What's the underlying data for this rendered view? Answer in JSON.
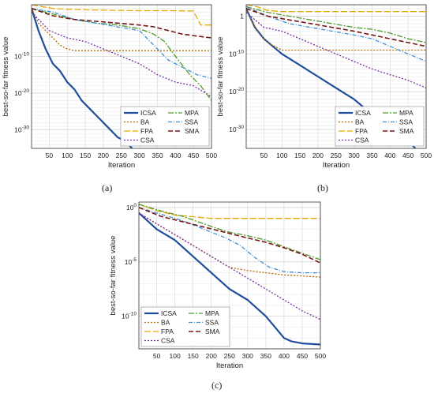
{
  "chart_data": [
    {
      "type": "line",
      "panel_label": "(a)",
      "xlabel": "Iteration",
      "ylabel": "best-so-far fitness value",
      "yscale": "log",
      "grid": true,
      "legend_position": "bottom-right",
      "xlim": [
        1,
        500
      ],
      "ylim_log10": [
        -35,
        4
      ],
      "x_ticks": [
        50,
        100,
        150,
        200,
        250,
        300,
        350,
        400,
        450,
        500
      ],
      "y_ticks": [
        {
          "exp": -30,
          "label": "10-30"
        },
        {
          "exp": -20,
          "label": "10-20"
        },
        {
          "exp": -10,
          "label": "10-10"
        }
      ],
      "legend": [
        "ICSA",
        "BA",
        "FPA",
        "CSA",
        "MPA",
        "SSA",
        "SMA"
      ],
      "series": [
        {
          "name": "ICSA",
          "color": "#1f4e9c",
          "dash": "",
          "width": 2.2,
          "x": [
            1,
            20,
            40,
            60,
            80,
            100,
            120,
            140,
            160,
            180,
            200,
            220,
            240,
            260,
            280
          ],
          "y_log10": [
            3,
            -3,
            -8,
            -12,
            -14,
            -17,
            -19,
            -22,
            -24,
            -26,
            -28,
            -30,
            -32,
            -33,
            -35
          ]
        },
        {
          "name": "BA",
          "color": "#b36a00",
          "dash": "2,2",
          "width": 1.3,
          "x": [
            1,
            20,
            40,
            60,
            80,
            100,
            120,
            500
          ],
          "y_log10": [
            3,
            -1,
            -3,
            -5,
            -7,
            -8,
            -8.5,
            -8.5
          ]
        },
        {
          "name": "FPA",
          "color": "#e6a800",
          "dash": "8,3",
          "width": 1.3,
          "x": [
            1,
            30,
            60,
            100,
            160,
            220,
            300,
            380,
            450,
            470,
            500
          ],
          "y_log10": [
            4,
            3.5,
            3,
            2.8,
            2.6,
            2.5,
            2.4,
            2.4,
            2.3,
            -1.5,
            -1.5
          ]
        },
        {
          "name": "CSA",
          "color": "#7a2ea0",
          "dash": "2,2",
          "width": 1.3,
          "x": [
            1,
            50,
            100,
            150,
            200,
            250,
            300,
            350,
            400,
            450,
            500
          ],
          "y_log10": [
            2,
            -3,
            -5,
            -6,
            -8,
            -10,
            -12,
            -15,
            -17,
            -18,
            -21
          ]
        },
        {
          "name": "MPA",
          "color": "#4f9a2c",
          "dash": "7,2,2,2",
          "width": 1.3,
          "x": [
            1,
            60,
            120,
            180,
            240,
            300,
            340,
            370,
            400,
            440,
            470,
            500
          ],
          "y_log10": [
            3,
            1.5,
            0,
            -1,
            -1.5,
            -2.5,
            -4,
            -6,
            -10,
            -15,
            -18,
            -22
          ]
        },
        {
          "name": "SSA",
          "color": "#3e8fd6",
          "dash": "5,2,1,2",
          "width": 1.3,
          "x": [
            1,
            60,
            120,
            180,
            240,
            300,
            340,
            380,
            420,
            460,
            500
          ],
          "y_log10": [
            3,
            2,
            0,
            -1,
            -2,
            -3,
            -7,
            -11,
            -13,
            -15,
            -16
          ]
        },
        {
          "name": "SMA",
          "color": "#7a1414",
          "dash": "6,3",
          "width": 1.6,
          "x": [
            1,
            60,
            120,
            180,
            240,
            300,
            340,
            380,
            420,
            460,
            500
          ],
          "y_log10": [
            3,
            1,
            0,
            -0.5,
            -1,
            -1.5,
            -2,
            -3,
            -4,
            -4.5,
            -5
          ]
        }
      ]
    },
    {
      "type": "line",
      "panel_label": "(b)",
      "xlabel": "Iteration",
      "ylabel": "best-so-far fitness value",
      "yscale": "log",
      "grid": true,
      "legend_position": "bottom-right",
      "xlim": [
        1,
        500
      ],
      "ylim_log10": [
        -35,
        3
      ],
      "x_ticks": [
        50,
        100,
        150,
        200,
        250,
        300,
        350,
        400,
        450,
        500
      ],
      "y_ticks": [
        {
          "exp": -30,
          "label": "10-30"
        },
        {
          "exp": -20,
          "label": "10-20"
        },
        {
          "exp": -10,
          "label": "10-10"
        },
        {
          "exp": 0,
          "label": "1"
        }
      ],
      "legend": [
        "ICSA",
        "BA",
        "FPA",
        "CSA",
        "MPA",
        "SSA",
        "SMA"
      ],
      "series": [
        {
          "name": "ICSA",
          "color": "#1f4e9c",
          "dash": "",
          "width": 2.2,
          "x": [
            1,
            25,
            50,
            75,
            100,
            150,
            200,
            250,
            300,
            350,
            400,
            450,
            470
          ],
          "y_log10": [
            2,
            -3,
            -6,
            -8,
            -10,
            -13,
            -16,
            -19,
            -22,
            -26,
            -30,
            -33,
            -35
          ]
        },
        {
          "name": "BA",
          "color": "#b36a00",
          "dash": "2,2",
          "width": 1.3,
          "x": [
            1,
            20,
            40,
            60,
            80,
            100,
            500
          ],
          "y_log10": [
            2,
            -2,
            -5,
            -7,
            -8,
            -9,
            -9
          ]
        },
        {
          "name": "FPA",
          "color": "#e6a800",
          "dash": "8,3",
          "width": 1.3,
          "x": [
            1,
            30,
            60,
            100,
            500
          ],
          "y_log10": [
            3,
            2.5,
            1.5,
            1.2,
            1.2
          ]
        },
        {
          "name": "CSA",
          "color": "#7a2ea0",
          "dash": "2,2",
          "width": 1.3,
          "x": [
            1,
            50,
            100,
            150,
            200,
            250,
            300,
            350,
            400,
            450,
            500
          ],
          "y_log10": [
            1,
            -3,
            -4,
            -6,
            -8,
            -10,
            -12,
            -14,
            -15.5,
            -17,
            -19
          ]
        },
        {
          "name": "MPA",
          "color": "#4f9a2c",
          "dash": "7,2,2,2",
          "width": 1.3,
          "x": [
            1,
            60,
            120,
            180,
            240,
            300,
            350,
            400,
            450,
            500
          ],
          "y_log10": [
            2.5,
            1,
            0,
            -1,
            -2,
            -3,
            -3.5,
            -4.5,
            -6,
            -7
          ]
        },
        {
          "name": "SSA",
          "color": "#3e8fd6",
          "dash": "5,2,1,2",
          "width": 1.3,
          "x": [
            1,
            60,
            120,
            180,
            240,
            300,
            350,
            400,
            450,
            500
          ],
          "y_log10": [
            2.5,
            0,
            -2,
            -3,
            -4,
            -5,
            -6,
            -8,
            -10,
            -12
          ]
        },
        {
          "name": "SMA",
          "color": "#7a1414",
          "dash": "6,3",
          "width": 1.6,
          "x": [
            1,
            60,
            120,
            180,
            240,
            300,
            350,
            400,
            450,
            500
          ],
          "y_log10": [
            2,
            0,
            -1,
            -2,
            -3,
            -4,
            -5,
            -6,
            -7,
            -8
          ]
        }
      ]
    },
    {
      "type": "line",
      "panel_label": "(c)",
      "xlabel": "Iteration",
      "ylabel": "best-so-far fitness value",
      "yscale": "log",
      "grid": true,
      "legend_position": "bottom-left",
      "xlim": [
        1,
        500
      ],
      "ylim_log10": [
        -13,
        0.5
      ],
      "x_ticks": [
        50,
        100,
        150,
        200,
        250,
        300,
        350,
        400,
        450,
        500
      ],
      "y_ticks": [
        {
          "exp": -10,
          "label": "10-10"
        },
        {
          "exp": -5,
          "label": "10-5"
        },
        {
          "exp": 0,
          "label": "100"
        }
      ],
      "legend": [
        "ICSA",
        "BA",
        "FPA",
        "CSA",
        "MPA",
        "SSA",
        "SMA"
      ],
      "series": [
        {
          "name": "ICSA",
          "color": "#1f4e9c",
          "dash": "",
          "width": 2.2,
          "x": [
            1,
            50,
            100,
            150,
            200,
            250,
            300,
            350,
            400,
            420,
            450,
            500
          ],
          "y_log10": [
            -0.5,
            -2,
            -3,
            -4.5,
            -6,
            -7.5,
            -8.5,
            -10,
            -12,
            -12.3,
            -12.5,
            -12.6
          ]
        },
        {
          "name": "BA",
          "color": "#b36a00",
          "dash": "2,2",
          "width": 1.3,
          "x": [
            1,
            50,
            100,
            150,
            200,
            250,
            300,
            350,
            400,
            450,
            500
          ],
          "y_log10": [
            -0.5,
            -1.5,
            -2.5,
            -3.5,
            -4.5,
            -5.5,
            -5.8,
            -6,
            -6.2,
            -6.3,
            -6.4
          ]
        },
        {
          "name": "FPA",
          "color": "#e6a800",
          "dash": "8,3",
          "width": 1.3,
          "x": [
            1,
            50,
            100,
            200,
            500
          ],
          "y_log10": [
            0.3,
            -0.3,
            -0.7,
            -1,
            -1
          ]
        },
        {
          "name": "CSA",
          "color": "#7a2ea0",
          "dash": "2,2",
          "width": 1.3,
          "x": [
            1,
            50,
            100,
            150,
            200,
            250,
            300,
            350,
            400,
            450,
            500
          ],
          "y_log10": [
            -0.5,
            -1.5,
            -2.5,
            -3.5,
            -4.5,
            -5.5,
            -6.5,
            -7.5,
            -8.5,
            -9.5,
            -10.3
          ]
        },
        {
          "name": "MPA",
          "color": "#4f9a2c",
          "dash": "7,2,2,2",
          "width": 1.3,
          "x": [
            1,
            60,
            120,
            180,
            240,
            300,
            350,
            400,
            450,
            500
          ],
          "y_log10": [
            0.3,
            -0.3,
            -0.8,
            -1.5,
            -2.2,
            -2.6,
            -3,
            -3.6,
            -4.2,
            -4.8
          ]
        },
        {
          "name": "SSA",
          "color": "#3e8fd6",
          "dash": "5,2,1,2",
          "width": 1.3,
          "x": [
            1,
            60,
            120,
            180,
            240,
            280,
            320,
            360,
            400,
            450,
            500
          ],
          "y_log10": [
            0,
            -0.6,
            -1.2,
            -2,
            -2.8,
            -3.5,
            -4.6,
            -5.5,
            -5.9,
            -6,
            -6
          ]
        },
        {
          "name": "SMA",
          "color": "#7a1414",
          "dash": "6,3",
          "width": 1.6,
          "x": [
            1,
            60,
            120,
            180,
            240,
            300,
            350,
            400,
            450,
            500
          ],
          "y_log10": [
            0,
            -0.8,
            -1.3,
            -1.8,
            -2.3,
            -2.8,
            -3.2,
            -3.7,
            -4.3,
            -5.1
          ]
        }
      ]
    }
  ]
}
